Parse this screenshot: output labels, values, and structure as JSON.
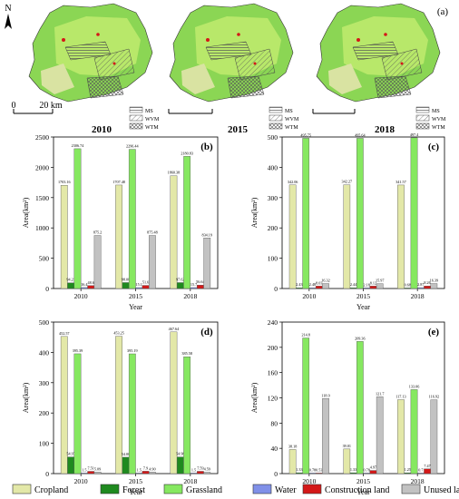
{
  "map_panel": {
    "label": "(a)",
    "north": "N",
    "scale_left": "0",
    "scale_right": "20 km",
    "years": [
      "2010",
      "2015",
      "2018"
    ],
    "legend": [
      "MS",
      "WVM",
      "WTM"
    ]
  },
  "chart_data": [
    {
      "type": "bar",
      "label": "(b)",
      "categories": [
        "2010",
        "2015",
        "2018"
      ],
      "ylim": [
        0,
        2500
      ],
      "yticks": [
        0,
        500,
        1000,
        1500,
        2000,
        2500
      ],
      "ylabel": "Area(km²)",
      "xlabel": "Year",
      "series": [
        {
          "name": "Cropland",
          "values": [
            1703.16,
            1707.48,
            1860.38
          ],
          "labels": [
            "1703.16",
            "1707.48",
            "1860.38"
          ]
        },
        {
          "name": "Forest",
          "values": [
            94.21,
            98.08,
            97.62
          ],
          "labels": [
            "94.21",
            "98.08",
            "97.62"
          ]
        },
        {
          "name": "Grassland",
          "values": [
            2306.74,
            2296.44,
            2180.83
          ],
          "labels": [
            "2306.74",
            "2296.44",
            "2180.83"
          ]
        },
        {
          "name": "Water",
          "values": [
            16.4,
            15.1,
            15.7
          ],
          "labels": [
            "16.4",
            "15.1",
            "15.7"
          ]
        },
        {
          "name": "Construction land",
          "values": [
            48.6,
            51.6,
            56.64
          ],
          "labels": [
            "48.6",
            "51.6",
            "56.64"
          ]
        },
        {
          "name": "Unused land",
          "values": [
            875.2,
            875.48,
            834.19
          ],
          "labels": [
            "875.2",
            "875.48",
            "834.19"
          ]
        }
      ]
    },
    {
      "type": "bar",
      "label": "(c)",
      "categories": [
        "2010",
        "2015",
        "2018"
      ],
      "ylim": [
        0,
        500
      ],
      "yticks": [
        0,
        100,
        200,
        300,
        400,
        500
      ],
      "ylabel": "Area(km²)",
      "xlabel": "Year",
      "series": [
        {
          "name": "Cropland",
          "values": [
            342.06,
            342.27,
            341.57
          ],
          "labels": [
            "342.06",
            "342.27",
            "341.57"
          ]
        },
        {
          "name": "Forest",
          "values": [
            2.43,
            2.44,
            0.68
          ],
          "labels": [
            "2.43",
            "2.44",
            "0.68"
          ]
        },
        {
          "name": "Grassland",
          "values": [
            495.75,
            495.64,
            497.4
          ],
          "labels": [
            "495.75",
            "495.64",
            "497.4"
          ]
        },
        {
          "name": "Water",
          "values": [
            2.48,
            2.18,
            2.87
          ],
          "labels": [
            "2.48",
            "2.18",
            "2.87"
          ]
        },
        {
          "name": "Construction land",
          "values": [
            8.03,
            8.12,
            8.26
          ],
          "labels": [
            "8.03",
            "8.12",
            "8.26"
          ]
        },
        {
          "name": "Unused land",
          "values": [
            16.32,
            15.97,
            16.39
          ],
          "labels": [
            "16.32",
            "15.97",
            "16.39"
          ]
        }
      ]
    },
    {
      "type": "bar",
      "label": "(d)",
      "categories": [
        "2010",
        "2015",
        "2018"
      ],
      "ylim": [
        0,
        500
      ],
      "yticks": [
        0,
        100,
        200,
        300,
        400,
        500
      ],
      "ylabel": "Area(km²)",
      "xlabel": "Year",
      "series": [
        {
          "name": "Cropland",
          "values": [
            452.57,
            453.25,
            467.64
          ],
          "labels": [
            "452.57",
            "453.25",
            "467.64"
          ]
        },
        {
          "name": "Forest",
          "values": [
            54.97,
            54.06,
            54.98
          ],
          "labels": [
            "54.97",
            "54.06",
            "54.98"
          ]
        },
        {
          "name": "Grassland",
          "values": [
            395.39,
            395.19,
            385.58
          ],
          "labels": [
            "395.39",
            "395.19",
            "385.58"
          ]
        },
        {
          "name": "Water",
          "values": [
            1.5,
            1.5,
            1.5
          ],
          "labels": [
            "1.5",
            "1.5",
            "1.5"
          ]
        },
        {
          "name": "Construction land",
          "values": [
            7.51,
            7.9,
            7.59
          ],
          "labels": [
            "7.51",
            "7.9",
            "7.59"
          ]
        },
        {
          "name": "Unused land",
          "values": [
            5.09,
            4.9,
            4.59
          ],
          "labels": [
            "5.09",
            "4.90",
            "4.59"
          ]
        }
      ]
    },
    {
      "type": "bar",
      "label": "(e)",
      "categories": [
        "2010",
        "2015",
        "2018"
      ],
      "ylim": [
        0,
        240
      ],
      "yticks": [
        0,
        40,
        80,
        120,
        160,
        200,
        240
      ],
      "ylabel": "Area(km²)",
      "xlabel": "Year",
      "series": [
        {
          "name": "Cropland",
          "values": [
            38.18,
            39.01,
            117.13
          ],
          "labels": [
            "38.18",
            "39.01",
            "117.13"
          ]
        },
        {
          "name": "Forest",
          "values": [
            1.33,
            1.33,
            1.25
          ],
          "labels": [
            "1.33",
            "1.33",
            "1.25"
          ]
        },
        {
          "name": "Grassland",
          "values": [
            214.8,
            209.36,
            133.06
          ],
          "labels": [
            "214.8",
            "209.36",
            "133.06"
          ]
        },
        {
          "name": "Water",
          "values": [
            0.78,
            0.78,
            0.7
          ],
          "labels": [
            "0.78",
            "0.78",
            "0.7"
          ]
        },
        {
          "name": "Construction land",
          "values": [
            0.53,
            4.97,
            7.47
          ],
          "labels": [
            "0.53",
            "4.97",
            "7.47"
          ]
        },
        {
          "name": "Unused land",
          "values": [
            118.9,
            121.7,
            116.92
          ],
          "labels": [
            "118.9",
            "121.7",
            "116.92"
          ]
        }
      ]
    }
  ],
  "legend": {
    "items": [
      {
        "name": "Cropland",
        "color": "#e3e8a8"
      },
      {
        "name": "Forest",
        "color": "#1f8a1f"
      },
      {
        "name": "Grassland",
        "color": "#86e860"
      },
      {
        "name": "Water",
        "color": "#8090e8"
      },
      {
        "name": "Construction land",
        "color": "#d41818"
      },
      {
        "name": "Unused land",
        "color": "#c2c2c2"
      }
    ]
  }
}
